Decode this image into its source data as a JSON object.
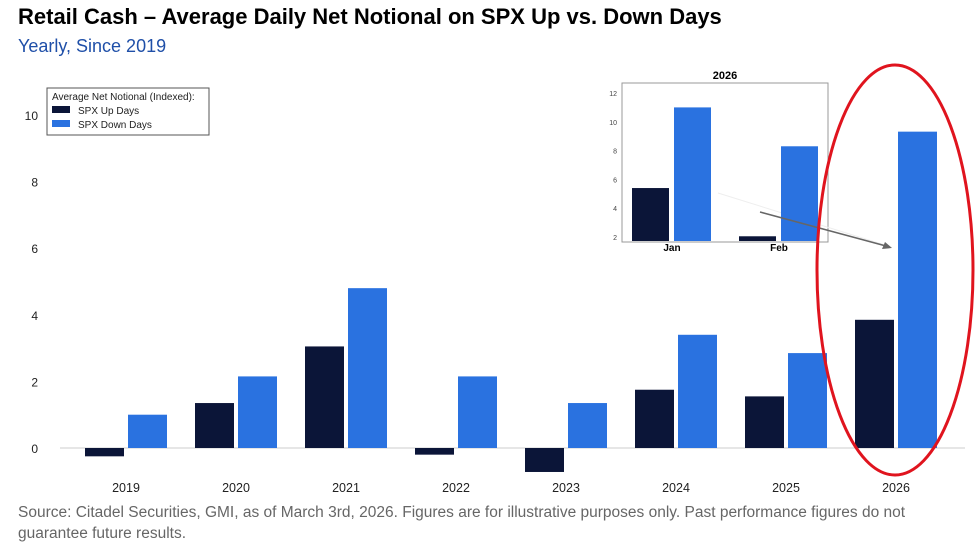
{
  "title": "Retail Cash – Average Daily Net Notional on SPX Up vs. Down Days",
  "subtitle": "Yearly, Since 2019",
  "source": "Source: Citadel Securities, GMI, as of March 3rd, 2026. Figures are for illustrative purposes only. Past performance figures do not guarantee future results.",
  "colors": {
    "up": "#0b1538",
    "down": "#2a72e0",
    "highlight": "#e0141e"
  },
  "chart_data": [
    {
      "type": "bar",
      "title": "",
      "categories": [
        "2019",
        "2020",
        "2021",
        "2022",
        "2023",
        "2024",
        "2025",
        "2026"
      ],
      "series": [
        {
          "name": "SPX Up Days",
          "values": [
            -0.25,
            1.35,
            3.05,
            -0.2,
            -0.72,
            1.75,
            1.55,
            3.85
          ]
        },
        {
          "name": "SPX Down Days",
          "values": [
            1.0,
            2.15,
            4.8,
            2.15,
            1.35,
            3.4,
            2.85,
            9.5
          ]
        }
      ],
      "legend_title": "Average Net Notional (Indexed):",
      "legend_position": "top-left",
      "yticks": [
        0,
        2,
        4,
        6,
        8,
        10
      ],
      "ylim": [
        -1,
        11
      ],
      "xlabel": "",
      "ylabel": ""
    },
    {
      "type": "bar",
      "title": "2026",
      "categories": [
        "Jan",
        "Feb"
      ],
      "series": [
        {
          "name": "SPX Up Days",
          "values": [
            5.4,
            2.05
          ]
        },
        {
          "name": "SPX Down Days",
          "values": [
            11.0,
            8.3
          ]
        }
      ],
      "yticks": [
        2,
        4,
        6,
        8,
        10,
        12
      ],
      "ylim": [
        1.8,
        12.5
      ]
    }
  ]
}
